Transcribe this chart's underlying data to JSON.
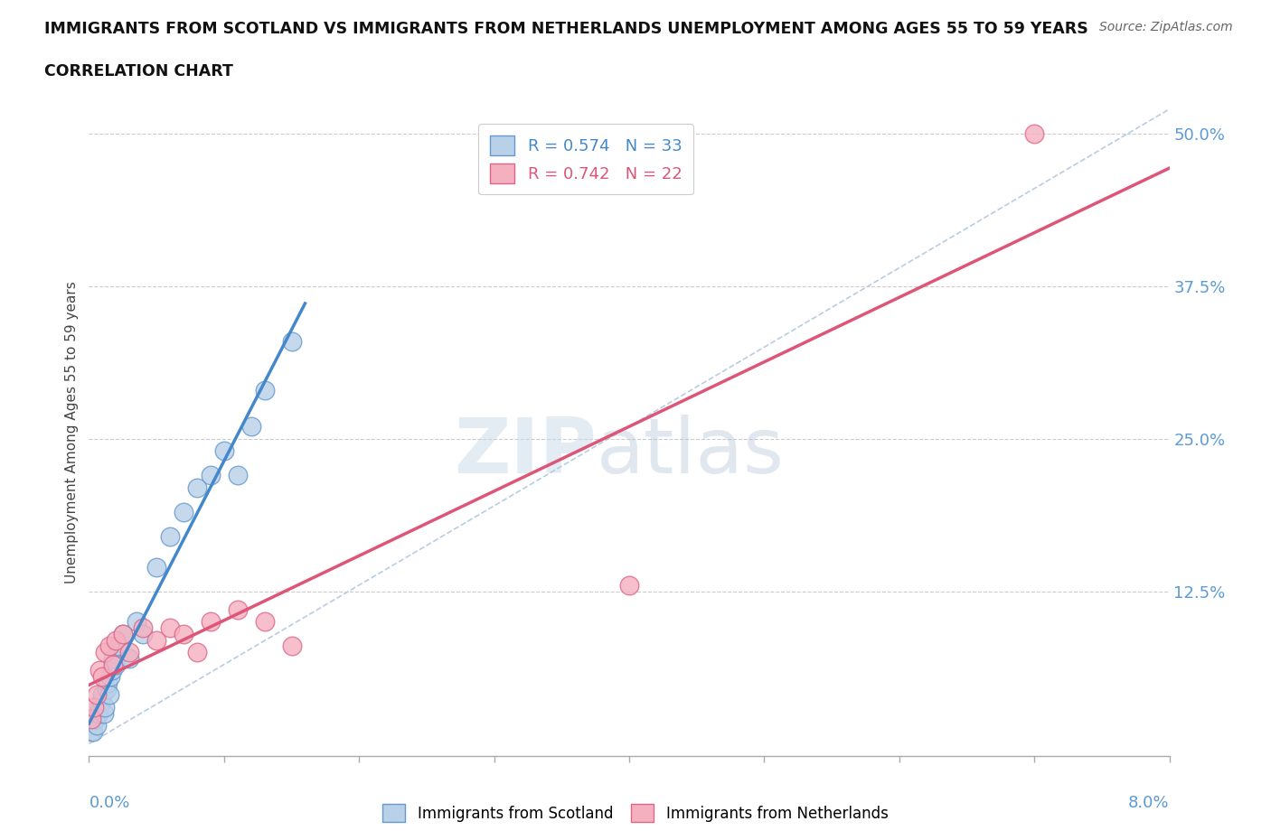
{
  "title_line1": "IMMIGRANTS FROM SCOTLAND VS IMMIGRANTS FROM NETHERLANDS UNEMPLOYMENT AMONG AGES 55 TO 59 YEARS",
  "title_line2": "CORRELATION CHART",
  "source": "Source: ZipAtlas.com",
  "ylabel": "Unemployment Among Ages 55 to 59 years",
  "yticks": [
    0.0,
    0.125,
    0.25,
    0.375,
    0.5
  ],
  "ytick_labels": [
    "",
    "12.5%",
    "25.0%",
    "37.5%",
    "50.0%"
  ],
  "legend1_label": "R = 0.574   N = 33",
  "legend2_label": "R = 0.742   N = 22",
  "legend_label_scotland": "Immigrants from Scotland",
  "legend_label_netherlands": "Immigrants from Netherlands",
  "scotland_color": "#b8d0e8",
  "netherlands_color": "#f5b0c0",
  "scotland_edge": "#6699cc",
  "netherlands_edge": "#dd6688",
  "trendline_scotland_color": "#4488cc",
  "trendline_netherlands_color": "#dd5577",
  "ref_line_color": "#b8cce4",
  "background_color": "#ffffff",
  "watermark_zip": "ZIP",
  "watermark_atlas": "atlas",
  "scotland_x": [
    0.0002,
    0.0003,
    0.0004,
    0.0005,
    0.0006,
    0.0007,
    0.0008,
    0.0009,
    0.001,
    0.0011,
    0.0012,
    0.0013,
    0.0014,
    0.0015,
    0.0016,
    0.0017,
    0.0018,
    0.002,
    0.0022,
    0.0025,
    0.003,
    0.0035,
    0.004,
    0.005,
    0.006,
    0.007,
    0.008,
    0.009,
    0.01,
    0.011,
    0.012,
    0.013,
    0.015
  ],
  "scotland_y": [
    0.01,
    0.01,
    0.02,
    0.02,
    0.015,
    0.025,
    0.03,
    0.035,
    0.04,
    0.025,
    0.03,
    0.045,
    0.05,
    0.04,
    0.055,
    0.06,
    0.07,
    0.065,
    0.08,
    0.09,
    0.07,
    0.1,
    0.09,
    0.145,
    0.17,
    0.19,
    0.21,
    0.22,
    0.24,
    0.22,
    0.26,
    0.29,
    0.33
  ],
  "netherlands_x": [
    0.0002,
    0.0004,
    0.0006,
    0.0008,
    0.001,
    0.0012,
    0.0015,
    0.0018,
    0.002,
    0.0025,
    0.003,
    0.004,
    0.005,
    0.006,
    0.007,
    0.008,
    0.009,
    0.011,
    0.013,
    0.015,
    0.04,
    0.07
  ],
  "netherlands_y": [
    0.02,
    0.03,
    0.04,
    0.06,
    0.055,
    0.075,
    0.08,
    0.065,
    0.085,
    0.09,
    0.075,
    0.095,
    0.085,
    0.095,
    0.09,
    0.075,
    0.1,
    0.11,
    0.1,
    0.08,
    0.13,
    0.5
  ],
  "xlim": [
    0.0,
    0.08
  ],
  "ylim": [
    -0.01,
    0.52
  ],
  "scotland_trend_xmax": 0.016,
  "netherlands_trend_xmax": 0.08
}
